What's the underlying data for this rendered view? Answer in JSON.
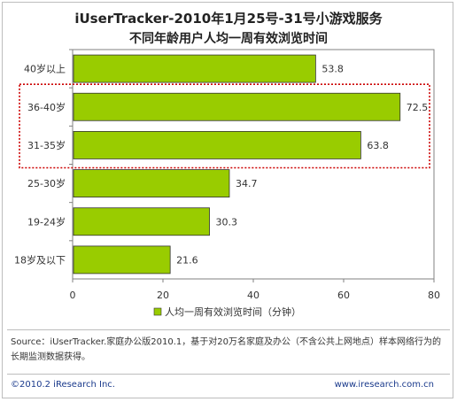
{
  "title": "iUserTracker-2010年1月25号-31号小游戏服务",
  "subtitle": "不同年龄用户人均一周有效浏览时间",
  "source_text": "Source：iUserTracker.家庭办公版2010.1，基于对20万名家庭及办公（不含公共上网地点）样本网络行为的长期监测数据获得。",
  "footer": {
    "copyright": "©2010.2 iResearch Inc.",
    "website": "www.iresearch.com.cn"
  },
  "colors": {
    "bar": "#99cc00",
    "highlight_box": "#cc0000",
    "plot_border": "#808080"
  },
  "chart_data": {
    "type": "bar",
    "orientation": "horizontal",
    "categories": [
      "40岁以上",
      "36-40岁",
      "31-35岁",
      "25-30岁",
      "19-24岁",
      "18岁及以下"
    ],
    "series": [
      {
        "name": "人均一周有效浏览时间（分钟）",
        "values": [
          53.8,
          72.5,
          63.8,
          34.7,
          30.3,
          21.6
        ]
      }
    ],
    "xlim": [
      0,
      80
    ],
    "xticks": [
      0,
      20,
      40,
      60,
      80
    ],
    "grid": false,
    "legend": "bottom",
    "highlighted_categories": [
      "36-40岁",
      "31-35岁"
    ]
  }
}
